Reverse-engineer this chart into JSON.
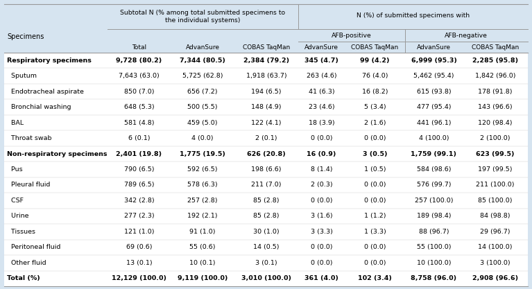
{
  "header_bg": "#d6e4f0",
  "white": "#ffffff",
  "col_group1_label": "Subtotal N (% among total submitted specimens to\nthe individual systems)",
  "col_group2_label": "N (%) of submitted specimens with",
  "col_sub1_label": "AFB-positive",
  "col_sub2_label": "AFB-negative",
  "col_headers": [
    "Total",
    "AdvanSure",
    "COBAS TaqMan",
    "AdvanSure",
    "COBAS TaqMan",
    "AdvanSure",
    "COBAS TaqMan"
  ],
  "rows": [
    [
      "Respiratory specimens",
      "9,728 (80.2)",
      "7,344 (80.5)",
      "2,384 (79.2)",
      "345 (4.7)",
      "99 (4.2)",
      "6,999 (95.3)",
      "2,285 (95.8)"
    ],
    [
      "  Sputum",
      "7,643 (63.0)",
      "5,725 (62.8)",
      "1,918 (63.7)",
      "263 (4.6)",
      "76 (4.0)",
      "5,462 (95.4)",
      "1,842 (96.0)"
    ],
    [
      "  Endotracheal aspirate",
      "850 (7.0)",
      "656 (7.2)",
      "194 (6.5)",
      "41 (6.3)",
      "16 (8.2)",
      "615 (93.8)",
      "178 (91.8)"
    ],
    [
      "  Bronchial washing",
      "648 (5.3)",
      "500 (5.5)",
      "148 (4.9)",
      "23 (4.6)",
      "5 (3.4)",
      "477 (95.4)",
      "143 (96.6)"
    ],
    [
      "  BAL",
      "581 (4.8)",
      "459 (5.0)",
      "122 (4.1)",
      "18 (3.9)",
      "2 (1.6)",
      "441 (96.1)",
      "120 (98.4)"
    ],
    [
      "  Throat swab",
      "6 (0.1)",
      "4 (0.0)",
      "2 (0.1)",
      "0 (0.0)",
      "0 (0.0)",
      "4 (100.0)",
      "2 (100.0)"
    ],
    [
      "Non-respiratory specimens",
      "2,401 (19.8)",
      "1,775 (19.5)",
      "626 (20.8)",
      "16 (0.9)",
      "3 (0.5)",
      "1,759 (99.1)",
      "623 (99.5)"
    ],
    [
      "  Pus",
      "790 (6.5)",
      "592 (6.5)",
      "198 (6.6)",
      "8 (1.4)",
      "1 (0.5)",
      "584 (98.6)",
      "197 (99.5)"
    ],
    [
      "  Pleural fluid",
      "789 (6.5)",
      "578 (6.3)",
      "211 (7.0)",
      "2 (0.3)",
      "0 (0.0)",
      "576 (99.7)",
      "211 (100.0)"
    ],
    [
      "  CSF",
      "342 (2.8)",
      "257 (2.8)",
      "85 (2.8)",
      "0 (0.0)",
      "0 (0.0)",
      "257 (100.0)",
      "85 (100.0)"
    ],
    [
      "  Urine",
      "277 (2.3)",
      "192 (2.1)",
      "85 (2.8)",
      "3 (1.6)",
      "1 (1.2)",
      "189 (98.4)",
      "84 (98.8)"
    ],
    [
      "  Tissues",
      "121 (1.0)",
      "91 (1.0)",
      "30 (1.0)",
      "3 (3.3)",
      "1 (3.3)",
      "88 (96.7)",
      "29 (96.7)"
    ],
    [
      "  Peritoneal fluid",
      "69 (0.6)",
      "55 (0.6)",
      "14 (0.5)",
      "0 (0.0)",
      "0 (0.0)",
      "55 (100.0)",
      "14 (100.0)"
    ],
    [
      "  Other fluid",
      "13 (0.1)",
      "10 (0.1)",
      "3 (0.1)",
      "0 (0.0)",
      "0 (0.0)",
      "10 (100.0)",
      "3 (100.0)"
    ],
    [
      "Total (%)",
      "12,129 (100.0)",
      "9,119 (100.0)",
      "3,010 (100.0)",
      "361 (4.0)",
      "102 (3.4)",
      "8,758 (96.0)",
      "2,908 (96.6)"
    ]
  ],
  "bold_rows": [
    0,
    6,
    14
  ],
  "font_size": 6.8,
  "header_font_size": 7.0,
  "line_color": "#999999",
  "fig_bg": "#d6e4f0"
}
